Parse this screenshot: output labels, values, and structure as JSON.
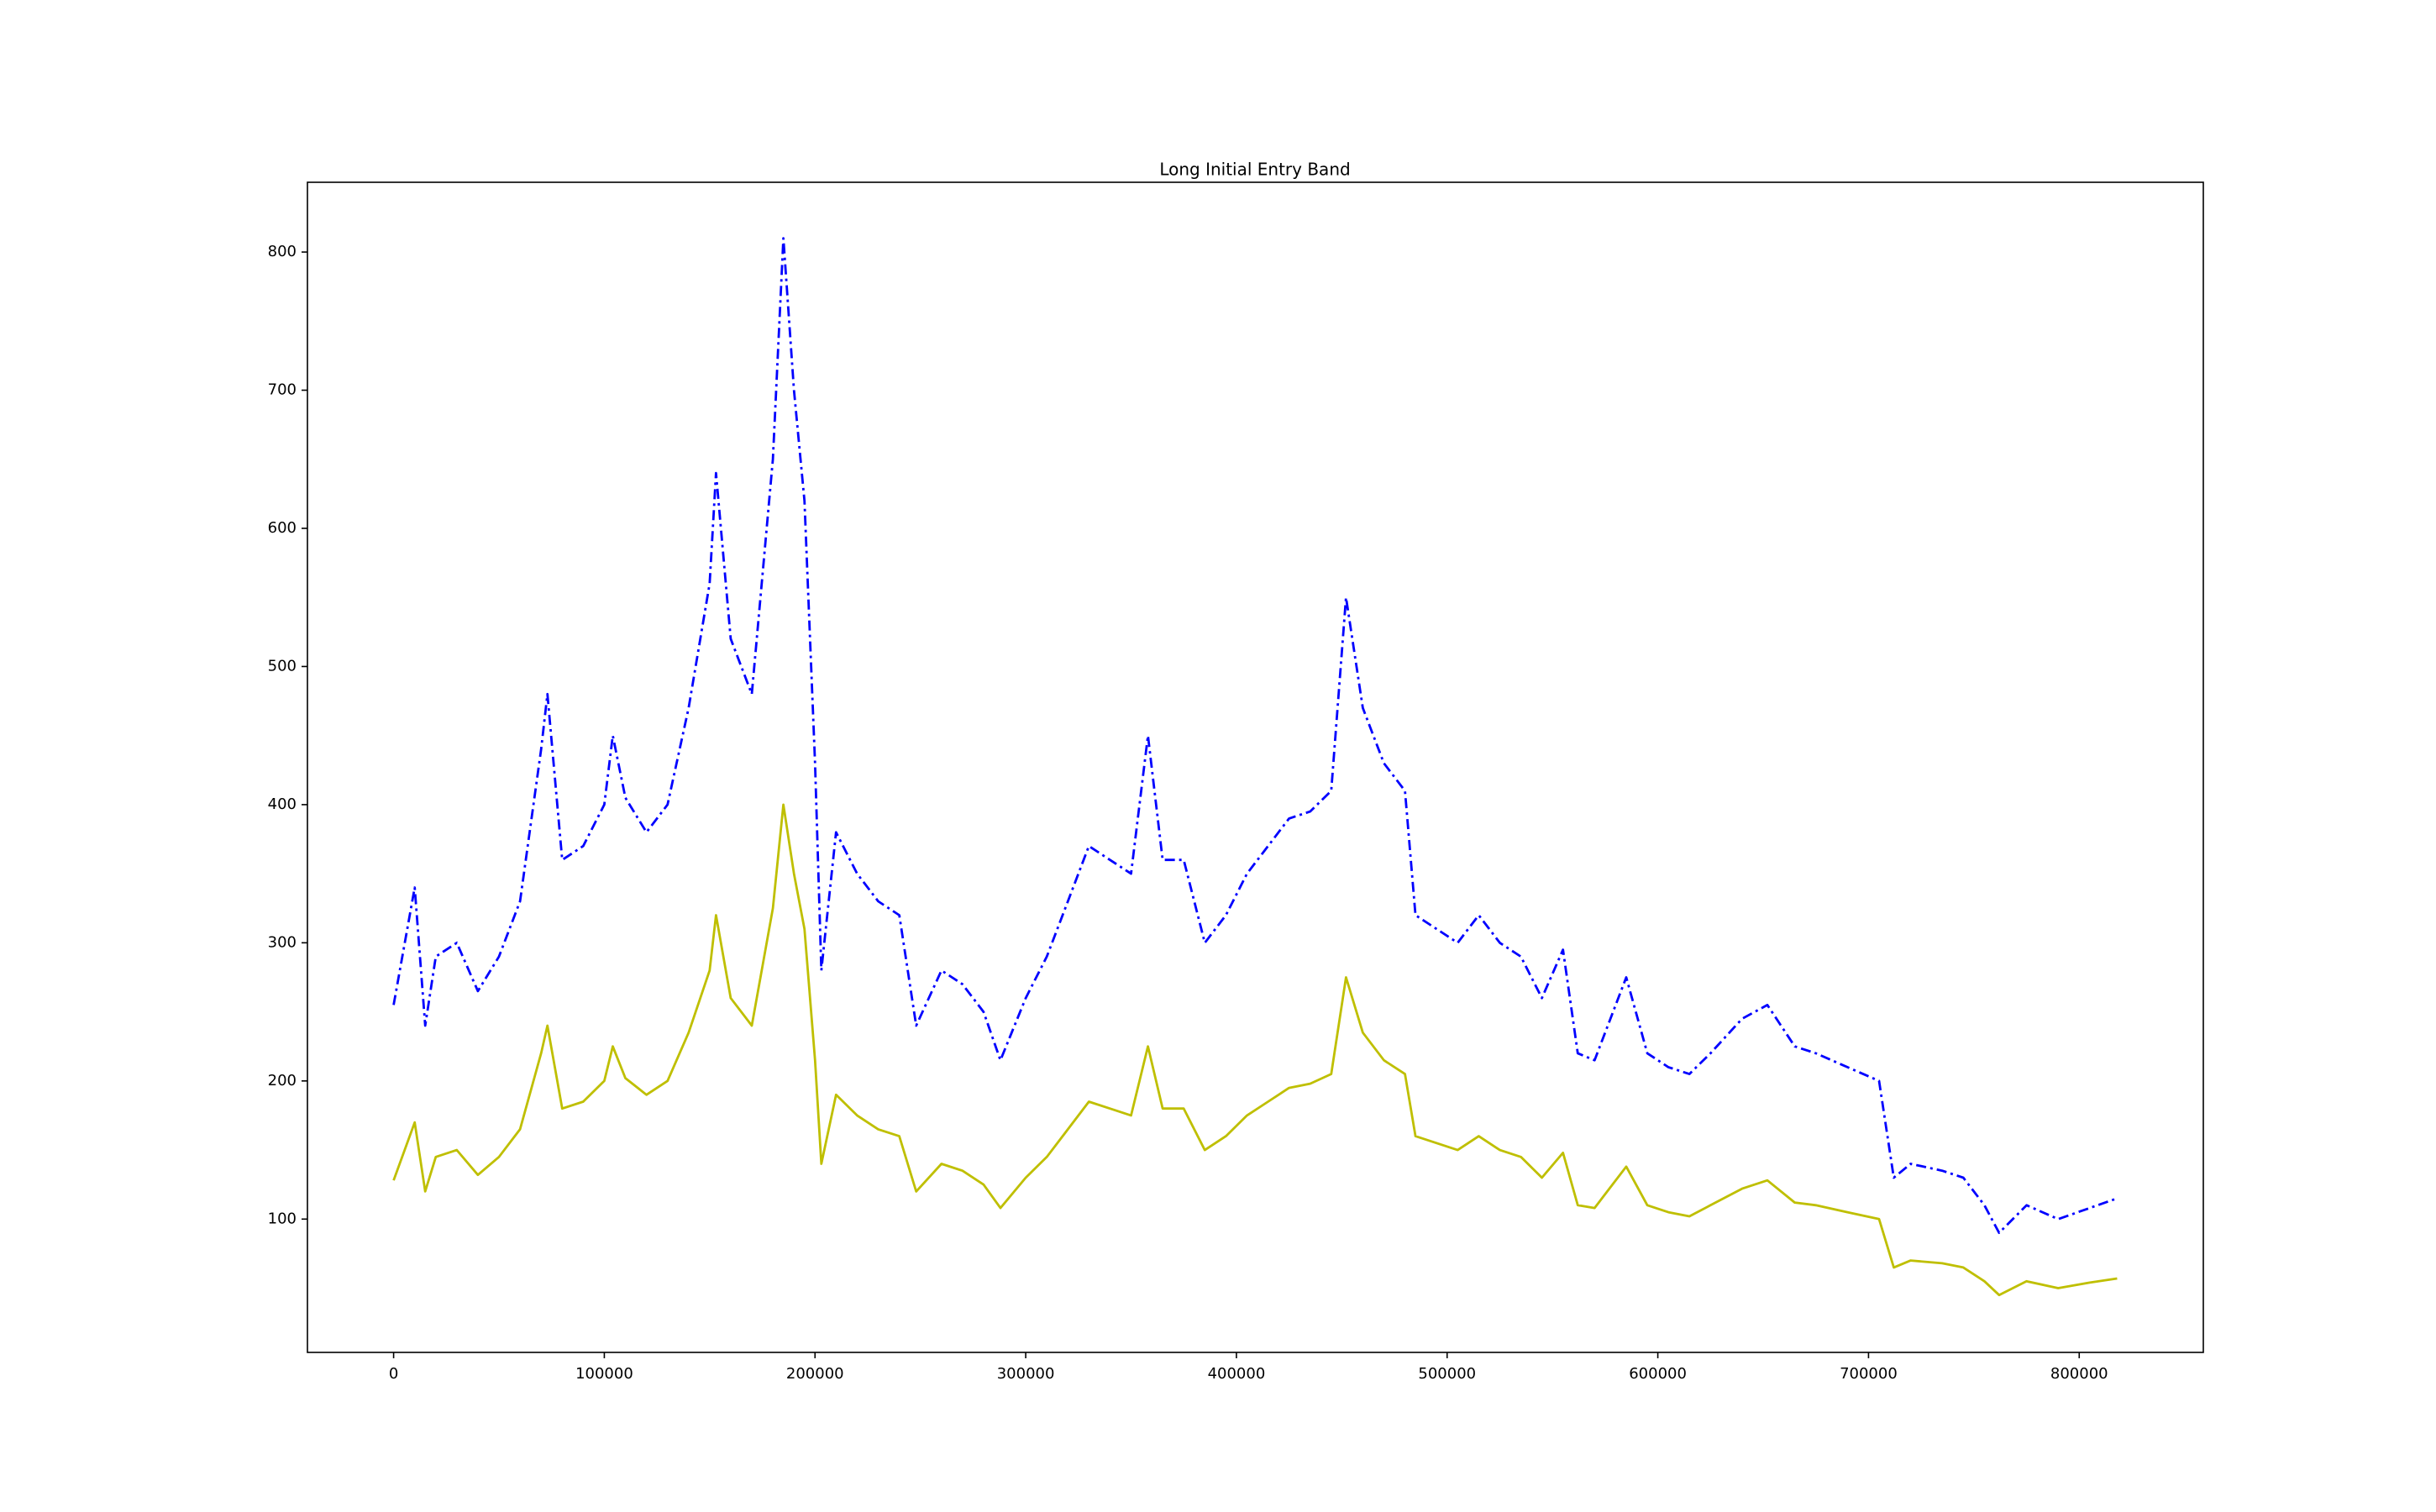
{
  "chart_data": {
    "type": "line",
    "title": "Long Initial Entry Band",
    "x": [
      0,
      10000,
      15000,
      20000,
      30000,
      40000,
      50000,
      60000,
      70000,
      73000,
      80000,
      90000,
      100000,
      104000,
      110000,
      120000,
      130000,
      140000,
      150000,
      153000,
      160000,
      170000,
      180000,
      185000,
      190000,
      195000,
      200000,
      203000,
      210000,
      220000,
      230000,
      240000,
      248000,
      260000,
      270000,
      280000,
      288000,
      300000,
      310000,
      320000,
      330000,
      340000,
      350000,
      358000,
      365000,
      375000,
      385000,
      395000,
      405000,
      415000,
      425000,
      435000,
      445000,
      452000,
      460000,
      470000,
      480000,
      485000,
      495000,
      505000,
      515000,
      525000,
      535000,
      545000,
      555000,
      562000,
      570000,
      585000,
      595000,
      605000,
      615000,
      625000,
      640000,
      652000,
      665000,
      675000,
      690000,
      705000,
      712000,
      720000,
      735000,
      745000,
      755000,
      762000,
      775000,
      790000,
      805000,
      818000
    ],
    "series": [
      {
        "color": "#0000ff",
        "style": "dashdot",
        "values": [
          255,
          340,
          240,
          290,
          300,
          265,
          290,
          330,
          440,
          480,
          360,
          370,
          400,
          450,
          405,
          380,
          400,
          470,
          560,
          640,
          520,
          480,
          650,
          810,
          700,
          620,
          430,
          280,
          380,
          350,
          330,
          320,
          240,
          280,
          270,
          250,
          215,
          260,
          290,
          330,
          370,
          360,
          350,
          450,
          360,
          360,
          300,
          320,
          350,
          370,
          390,
          395,
          410,
          550,
          470,
          430,
          410,
          320,
          310,
          300,
          320,
          300,
          290,
          260,
          295,
          220,
          215,
          275,
          220,
          210,
          205,
          220,
          245,
          255,
          225,
          220,
          210,
          200,
          130,
          140,
          135,
          130,
          110,
          90,
          110,
          100,
          108,
          115
        ]
      },
      {
        "color": "#bfbf00",
        "style": "solid",
        "values": [
          128,
          170,
          120,
          145,
          150,
          132,
          145,
          165,
          220,
          240,
          180,
          185,
          200,
          225,
          202,
          190,
          200,
          235,
          280,
          320,
          260,
          240,
          325,
          400,
          350,
          310,
          215,
          140,
          190,
          175,
          165,
          160,
          120,
          140,
          135,
          125,
          108,
          130,
          145,
          165,
          185,
          180,
          175,
          225,
          180,
          180,
          150,
          160,
          175,
          185,
          195,
          198,
          205,
          275,
          235,
          215,
          205,
          160,
          155,
          150,
          160,
          150,
          145,
          130,
          148,
          110,
          108,
          138,
          110,
          105,
          102,
          110,
          122,
          128,
          112,
          110,
          105,
          100,
          65,
          70,
          68,
          65,
          55,
          45,
          55,
          50,
          54,
          57
        ]
      }
    ],
    "xlim": [
      -40900,
      858900
    ],
    "ylim": [
      3.5,
      850.5
    ],
    "xticks": [
      0,
      100000,
      200000,
      300000,
      400000,
      500000,
      600000,
      700000,
      800000
    ],
    "yticks": [
      100,
      200,
      300,
      400,
      500,
      600,
      700,
      800
    ],
    "grid": false
  }
}
